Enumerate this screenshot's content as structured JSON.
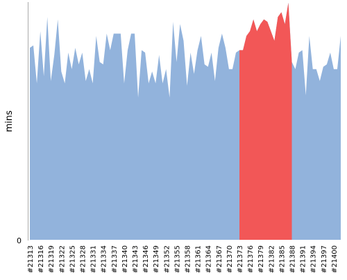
{
  "chart_data": {
    "type": "area",
    "ylabel": "mins",
    "y_ticks": [
      "0"
    ],
    "ylim": [
      0,
      1
    ],
    "x_tick_labels": [
      "#21313",
      "#21316",
      "#21319",
      "#21322",
      "#21325",
      "#21328",
      "#21331",
      "#21334",
      "#21337",
      "#21340",
      "#21343",
      "#21346",
      "#21349",
      "#21352",
      "#21355",
      "#21358",
      "#21361",
      "#21364",
      "#21367",
      "#21370",
      "#21373",
      "#21376",
      "#21379",
      "#21382",
      "#21385",
      "#21388",
      "#21391",
      "#21394",
      "#21397",
      "#21400"
    ],
    "x_start": 21313,
    "x_end": 21401,
    "series": [
      {
        "values": [
          0.81,
          0.82,
          0.66,
          0.88,
          0.69,
          0.94,
          0.67,
          0.78,
          0.93,
          0.71,
          0.66,
          0.79,
          0.72,
          0.81,
          0.74,
          0.79,
          0.67,
          0.72,
          0.66,
          0.86,
          0.75,
          0.74,
          0.87,
          0.8,
          0.87,
          0.87,
          0.87,
          0.66,
          0.8,
          0.87,
          0.87,
          0.6,
          0.8,
          0.79,
          0.66,
          0.71,
          0.66,
          0.78,
          0.66,
          0.72,
          0.6,
          0.92,
          0.75,
          0.91,
          0.84,
          0.65,
          0.79,
          0.7,
          0.8,
          0.86,
          0.74,
          0.73,
          0.79,
          0.67,
          0.81,
          0.87,
          0.81,
          0.72,
          0.72,
          0.79,
          0.8,
          0.8,
          0.86,
          0.88,
          0.93,
          0.88,
          0.91,
          0.93,
          0.92,
          0.88,
          0.84,
          0.94,
          0.96,
          0.91,
          1.0,
          0.75,
          0.72,
          0.79,
          0.8,
          0.61,
          0.86,
          0.72,
          0.72,
          0.67,
          0.73,
          0.74,
          0.79,
          0.72,
          0.72,
          0.86
        ]
      }
    ],
    "highlight_range": [
      21373,
      21388
    ],
    "colors": {
      "area": "#92b3dc",
      "highlight": "#f25757",
      "axis": "#aaaaaa",
      "text": "#000000"
    }
  }
}
